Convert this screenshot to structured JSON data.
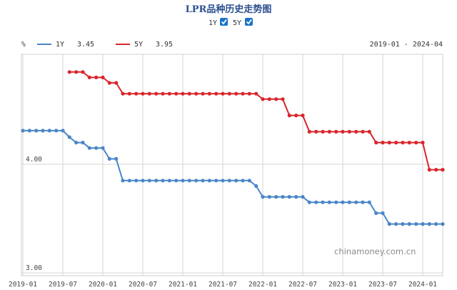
{
  "chart_data": {
    "type": "line",
    "title": "LPR品种历史走势图",
    "toggles": [
      {
        "label": "1Y",
        "checked": true
      },
      {
        "label": "5Y",
        "checked": true
      }
    ],
    "unit": "%",
    "range_label": "2019-01 - 2024-04",
    "watermark": "chinamoney.com.cn",
    "ylim": [
      3.0,
      5.0
    ],
    "yticks": [
      {
        "value": 4.0,
        "label": "4.00"
      },
      {
        "value": 3.0,
        "label": "3.00"
      }
    ],
    "xlim": [
      "2019-01",
      "2024-04"
    ],
    "xticks": [
      "2019-01",
      "2019-07",
      "2020-01",
      "2020-07",
      "2021-01",
      "2021-07",
      "2022-01",
      "2022-07",
      "2023-01",
      "2023-07",
      "2024-01"
    ],
    "series": [
      {
        "name": "1Y",
        "latest": "3.45",
        "color": "#4a86c8",
        "points": [
          [
            "2019-01",
            4.31
          ],
          [
            "2019-02",
            4.31
          ],
          [
            "2019-03",
            4.31
          ],
          [
            "2019-04",
            4.31
          ],
          [
            "2019-05",
            4.31
          ],
          [
            "2019-06",
            4.31
          ],
          [
            "2019-07",
            4.31
          ],
          [
            "2019-08",
            4.25
          ],
          [
            "2019-09",
            4.2
          ],
          [
            "2019-10",
            4.2
          ],
          [
            "2019-11",
            4.15
          ],
          [
            "2019-12",
            4.15
          ],
          [
            "2020-01",
            4.15
          ],
          [
            "2020-02",
            4.05
          ],
          [
            "2020-03",
            4.05
          ],
          [
            "2020-04",
            3.85
          ],
          [
            "2020-05",
            3.85
          ],
          [
            "2020-06",
            3.85
          ],
          [
            "2020-07",
            3.85
          ],
          [
            "2020-08",
            3.85
          ],
          [
            "2020-09",
            3.85
          ],
          [
            "2020-10",
            3.85
          ],
          [
            "2020-11",
            3.85
          ],
          [
            "2020-12",
            3.85
          ],
          [
            "2021-01",
            3.85
          ],
          [
            "2021-02",
            3.85
          ],
          [
            "2021-03",
            3.85
          ],
          [
            "2021-04",
            3.85
          ],
          [
            "2021-05",
            3.85
          ],
          [
            "2021-06",
            3.85
          ],
          [
            "2021-07",
            3.85
          ],
          [
            "2021-08",
            3.85
          ],
          [
            "2021-09",
            3.85
          ],
          [
            "2021-10",
            3.85
          ],
          [
            "2021-11",
            3.85
          ],
          [
            "2021-12",
            3.8
          ],
          [
            "2022-01",
            3.7
          ],
          [
            "2022-02",
            3.7
          ],
          [
            "2022-03",
            3.7
          ],
          [
            "2022-04",
            3.7
          ],
          [
            "2022-05",
            3.7
          ],
          [
            "2022-06",
            3.7
          ],
          [
            "2022-07",
            3.7
          ],
          [
            "2022-08",
            3.65
          ],
          [
            "2022-09",
            3.65
          ],
          [
            "2022-10",
            3.65
          ],
          [
            "2022-11",
            3.65
          ],
          [
            "2022-12",
            3.65
          ],
          [
            "2023-01",
            3.65
          ],
          [
            "2023-02",
            3.65
          ],
          [
            "2023-03",
            3.65
          ],
          [
            "2023-04",
            3.65
          ],
          [
            "2023-05",
            3.65
          ],
          [
            "2023-06",
            3.55
          ],
          [
            "2023-07",
            3.55
          ],
          [
            "2023-08",
            3.45
          ],
          [
            "2023-09",
            3.45
          ],
          [
            "2023-10",
            3.45
          ],
          [
            "2023-11",
            3.45
          ],
          [
            "2023-12",
            3.45
          ],
          [
            "2024-01",
            3.45
          ],
          [
            "2024-02",
            3.45
          ],
          [
            "2024-03",
            3.45
          ],
          [
            "2024-04",
            3.45
          ]
        ]
      },
      {
        "name": "5Y",
        "latest": "3.95",
        "color": "#d8262c",
        "points": [
          [
            "2019-08",
            4.85
          ],
          [
            "2019-09",
            4.85
          ],
          [
            "2019-10",
            4.85
          ],
          [
            "2019-11",
            4.8
          ],
          [
            "2019-12",
            4.8
          ],
          [
            "2020-01",
            4.8
          ],
          [
            "2020-02",
            4.75
          ],
          [
            "2020-03",
            4.75
          ],
          [
            "2020-04",
            4.65
          ],
          [
            "2020-05",
            4.65
          ],
          [
            "2020-06",
            4.65
          ],
          [
            "2020-07",
            4.65
          ],
          [
            "2020-08",
            4.65
          ],
          [
            "2020-09",
            4.65
          ],
          [
            "2020-10",
            4.65
          ],
          [
            "2020-11",
            4.65
          ],
          [
            "2020-12",
            4.65
          ],
          [
            "2021-01",
            4.65
          ],
          [
            "2021-02",
            4.65
          ],
          [
            "2021-03",
            4.65
          ],
          [
            "2021-04",
            4.65
          ],
          [
            "2021-05",
            4.65
          ],
          [
            "2021-06",
            4.65
          ],
          [
            "2021-07",
            4.65
          ],
          [
            "2021-08",
            4.65
          ],
          [
            "2021-09",
            4.65
          ],
          [
            "2021-10",
            4.65
          ],
          [
            "2021-11",
            4.65
          ],
          [
            "2021-12",
            4.65
          ],
          [
            "2022-01",
            4.6
          ],
          [
            "2022-02",
            4.6
          ],
          [
            "2022-03",
            4.6
          ],
          [
            "2022-04",
            4.6
          ],
          [
            "2022-05",
            4.45
          ],
          [
            "2022-06",
            4.45
          ],
          [
            "2022-07",
            4.45
          ],
          [
            "2022-08",
            4.3
          ],
          [
            "2022-09",
            4.3
          ],
          [
            "2022-10",
            4.3
          ],
          [
            "2022-11",
            4.3
          ],
          [
            "2022-12",
            4.3
          ],
          [
            "2023-01",
            4.3
          ],
          [
            "2023-02",
            4.3
          ],
          [
            "2023-03",
            4.3
          ],
          [
            "2023-04",
            4.3
          ],
          [
            "2023-05",
            4.3
          ],
          [
            "2023-06",
            4.2
          ],
          [
            "2023-07",
            4.2
          ],
          [
            "2023-08",
            4.2
          ],
          [
            "2023-09",
            4.2
          ],
          [
            "2023-10",
            4.2
          ],
          [
            "2023-11",
            4.2
          ],
          [
            "2023-12",
            4.2
          ],
          [
            "2024-01",
            4.2
          ],
          [
            "2024-02",
            3.95
          ],
          [
            "2024-03",
            3.95
          ],
          [
            "2024-04",
            3.95
          ]
        ]
      }
    ]
  }
}
